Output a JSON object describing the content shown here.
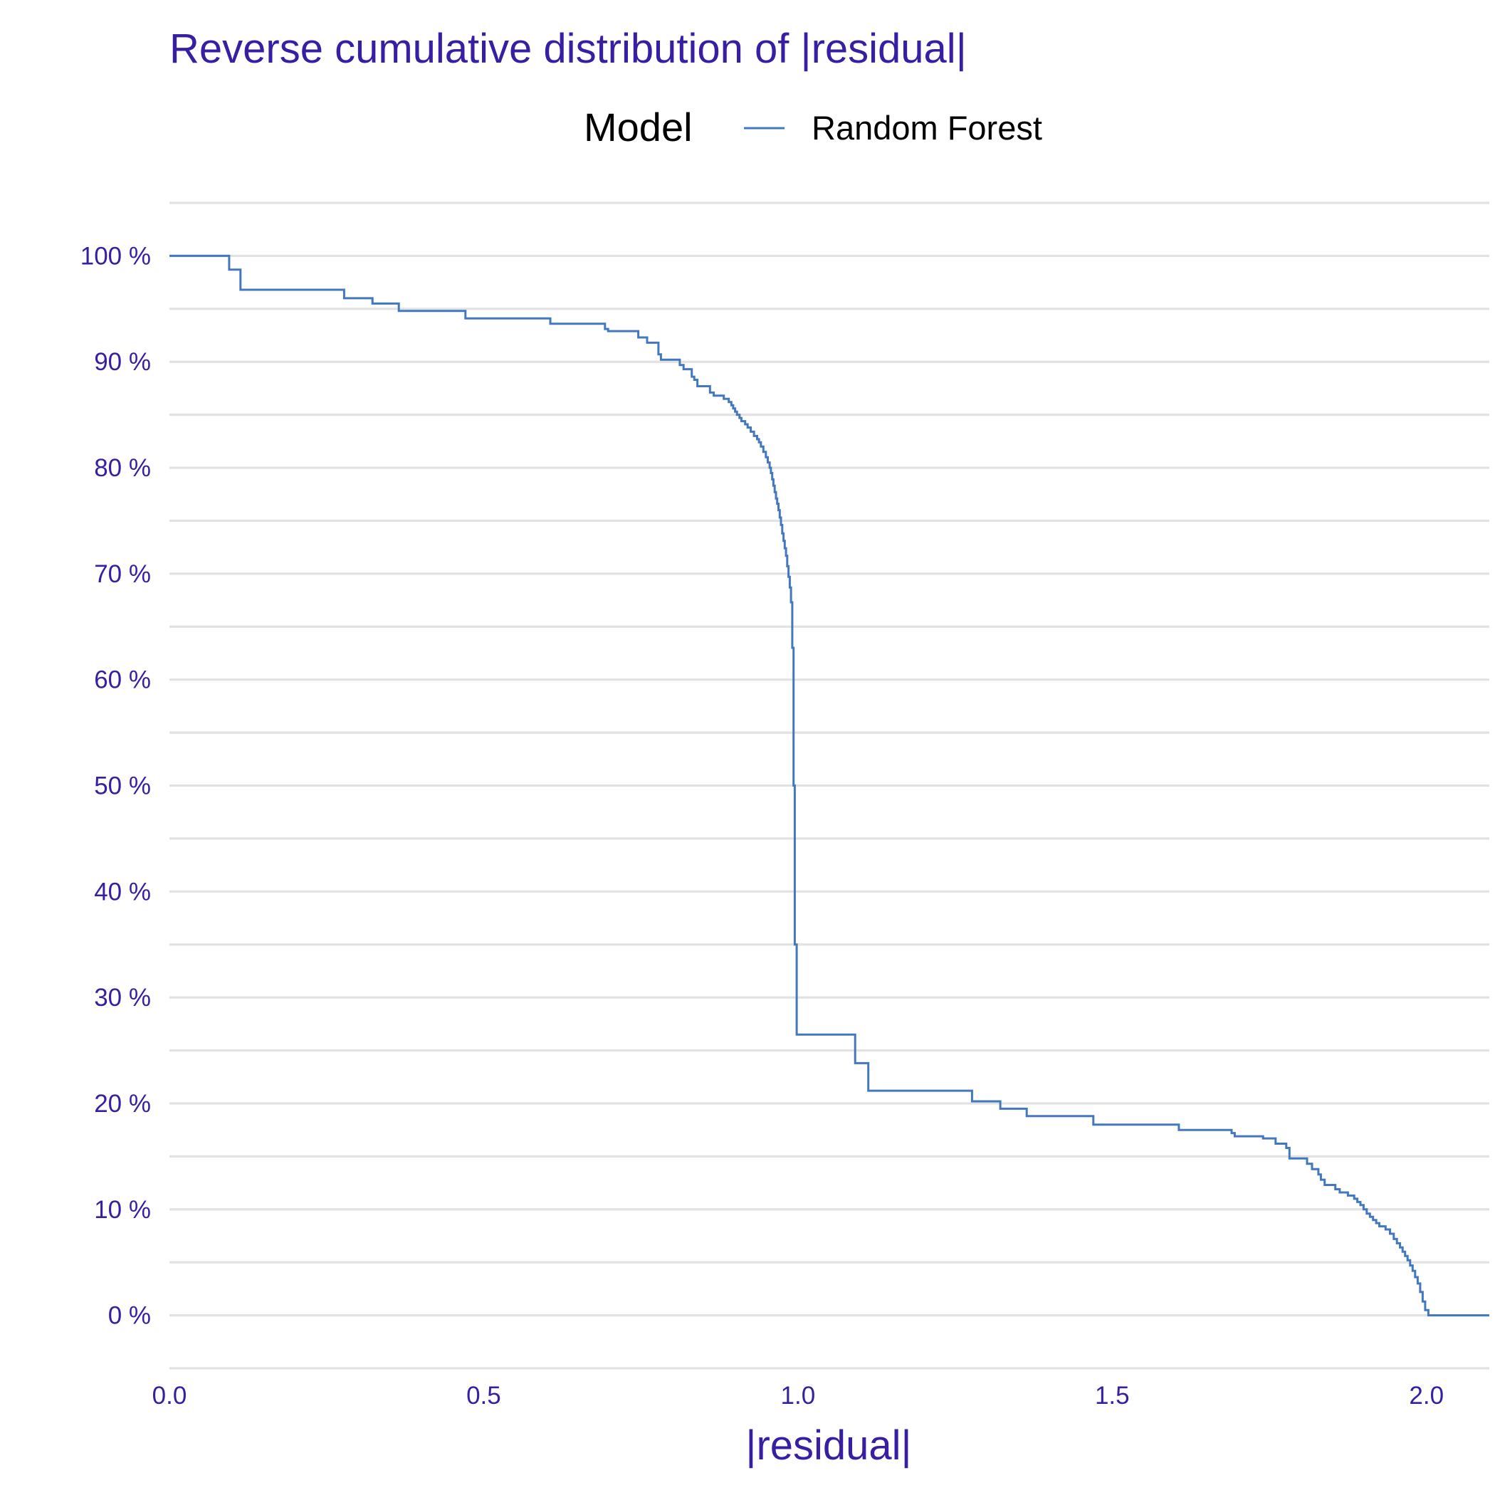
{
  "colors": {
    "text": "#371ea3",
    "series": "#4378bf",
    "grid": "#e2e2e2",
    "background": "#ffffff"
  },
  "chart_data": {
    "type": "line",
    "step": true,
    "title": "Reverse cumulative distribution of |residual|",
    "xlabel": "|residual|",
    "ylabel": "",
    "legend": {
      "title": "Model",
      "position": "top"
    },
    "xlim": [
      0,
      2.1
    ],
    "ylim": [
      -0.05,
      1.05
    ],
    "x_ticks": [
      0.0,
      0.5,
      1.0,
      1.5,
      2.0
    ],
    "x_tick_labels": [
      "0.0",
      "0.5",
      "1.0",
      "1.5",
      "2.0"
    ],
    "y_ticks": [
      0,
      0.1,
      0.2,
      0.3,
      0.4,
      0.5,
      0.6,
      0.7,
      0.8,
      0.9,
      1.0
    ],
    "y_tick_labels": [
      "0 %",
      "10 %",
      "20 %",
      "30 %",
      "40 %",
      "50 %",
      "60 %",
      "70 %",
      "80 %",
      "90 %",
      "100 %"
    ],
    "grid": "horizontal",
    "series": [
      {
        "name": "Random Forest",
        "x": [
          0.0,
          0.095,
          0.113,
          0.278,
          0.323,
          0.365,
          0.471,
          0.606,
          0.693,
          0.698,
          0.746,
          0.76,
          0.778,
          0.782,
          0.812,
          0.818,
          0.831,
          0.835,
          0.84,
          0.86,
          0.866,
          0.882,
          0.89,
          0.894,
          0.897,
          0.9,
          0.903,
          0.907,
          0.91,
          0.916,
          0.92,
          0.925,
          0.93,
          0.935,
          0.938,
          0.941,
          0.945,
          0.949,
          0.952,
          0.955,
          0.957,
          0.959,
          0.961,
          0.963,
          0.965,
          0.967,
          0.969,
          0.971,
          0.973,
          0.975,
          0.977,
          0.979,
          0.981,
          0.983,
          0.985,
          0.987,
          0.989,
          0.991,
          0.993,
          0.995,
          0.998,
          1.001,
          1.003,
          1.005,
          1.091,
          1.112,
          1.277,
          1.322,
          1.364,
          1.47,
          1.606,
          1.69,
          1.695,
          1.74,
          1.76,
          1.777,
          1.782,
          1.81,
          1.818,
          1.828,
          1.832,
          1.838,
          1.855,
          1.862,
          1.875,
          1.885,
          1.89,
          1.895,
          1.9,
          1.905,
          1.91,
          1.915,
          1.92,
          1.925,
          1.935,
          1.942,
          1.948,
          1.953,
          1.958,
          1.962,
          1.966,
          1.97,
          1.974,
          1.978,
          1.982,
          1.986,
          1.99,
          1.994,
          1.998,
          2.003,
          2.1
        ],
        "y": [
          1.0,
          0.987,
          0.968,
          0.96,
          0.955,
          0.948,
          0.941,
          0.936,
          0.931,
          0.929,
          0.923,
          0.918,
          0.907,
          0.902,
          0.897,
          0.893,
          0.886,
          0.883,
          0.877,
          0.871,
          0.868,
          0.865,
          0.862,
          0.859,
          0.856,
          0.853,
          0.85,
          0.847,
          0.844,
          0.841,
          0.838,
          0.834,
          0.83,
          0.827,
          0.824,
          0.82,
          0.815,
          0.81,
          0.805,
          0.8,
          0.795,
          0.789,
          0.783,
          0.777,
          0.771,
          0.766,
          0.76,
          0.753,
          0.746,
          0.738,
          0.731,
          0.724,
          0.717,
          0.707,
          0.697,
          0.687,
          0.673,
          0.63,
          0.5,
          0.35,
          0.265,
          0.265,
          0.265,
          0.265,
          0.238,
          0.212,
          0.202,
          0.195,
          0.188,
          0.18,
          0.175,
          0.172,
          0.169,
          0.167,
          0.162,
          0.158,
          0.148,
          0.143,
          0.138,
          0.133,
          0.128,
          0.123,
          0.119,
          0.116,
          0.113,
          0.11,
          0.107,
          0.104,
          0.1,
          0.096,
          0.093,
          0.09,
          0.087,
          0.084,
          0.081,
          0.077,
          0.072,
          0.068,
          0.064,
          0.06,
          0.056,
          0.052,
          0.047,
          0.042,
          0.036,
          0.03,
          0.022,
          0.013,
          0.005,
          0.0,
          0.0
        ]
      }
    ]
  }
}
